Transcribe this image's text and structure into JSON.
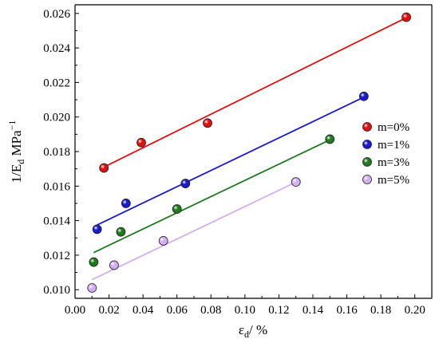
{
  "chart_data": {
    "type": "scatter",
    "title": "",
    "xlabel": {
      "base": "ε",
      "sub": "d",
      "suffix": "/ %"
    },
    "ylabel": {
      "prefix": "1/E",
      "sub": "d",
      "suffix": " MPa",
      "sup": "−1"
    },
    "xlim": [
      0.0,
      0.21
    ],
    "ylim": [
      0.0095,
      0.0265
    ],
    "x_ticks": [
      0.0,
      0.02,
      0.04,
      0.06,
      0.08,
      0.1,
      0.12,
      0.14,
      0.16,
      0.18,
      0.2
    ],
    "x_tick_labels": [
      "0.00",
      "0.02",
      "0.04",
      "0.06",
      "0.08",
      "0.10",
      "0.12",
      "0.14",
      "0.16",
      "0.18",
      "0.20"
    ],
    "y_ticks": [
      0.01,
      0.012,
      0.014,
      0.016,
      0.018,
      0.02,
      0.022,
      0.024,
      0.026
    ],
    "y_tick_labels": [
      "0.010",
      "0.012",
      "0.014",
      "0.016",
      "0.018",
      "0.020",
      "0.022",
      "0.024",
      "0.026"
    ],
    "grid": false,
    "legend": "right",
    "series": [
      {
        "name": "m=0%",
        "color": "#e01010",
        "points": [
          [
            0.017,
            0.01705
          ],
          [
            0.039,
            0.01852
          ],
          [
            0.078,
            0.01965
          ],
          [
            0.195,
            0.02578
          ]
        ],
        "fit": [
          [
            0.017,
            0.0171
          ],
          [
            0.195,
            0.02575
          ]
        ]
      },
      {
        "name": "m=1%",
        "color": "#1a1acc",
        "points": [
          [
            0.013,
            0.0135
          ],
          [
            0.03,
            0.015
          ],
          [
            0.065,
            0.01615
          ],
          [
            0.17,
            0.0212
          ]
        ],
        "fit": [
          [
            0.013,
            0.01375
          ],
          [
            0.17,
            0.02115
          ]
        ]
      },
      {
        "name": "m=3%",
        "color": "#1f7a1f",
        "points": [
          [
            0.011,
            0.0116
          ],
          [
            0.027,
            0.01335
          ],
          [
            0.06,
            0.01467
          ],
          [
            0.15,
            0.01872
          ]
        ],
        "fit": [
          [
            0.011,
            0.01215
          ],
          [
            0.15,
            0.01868
          ]
        ]
      },
      {
        "name": "m=5%",
        "color": "#d4aef2",
        "points": [
          [
            0.01,
            0.0101
          ],
          [
            0.023,
            0.01142
          ],
          [
            0.052,
            0.01283
          ],
          [
            0.13,
            0.01624
          ]
        ],
        "fit": [
          [
            0.01,
            0.01058
          ],
          [
            0.13,
            0.01623
          ]
        ]
      }
    ]
  }
}
